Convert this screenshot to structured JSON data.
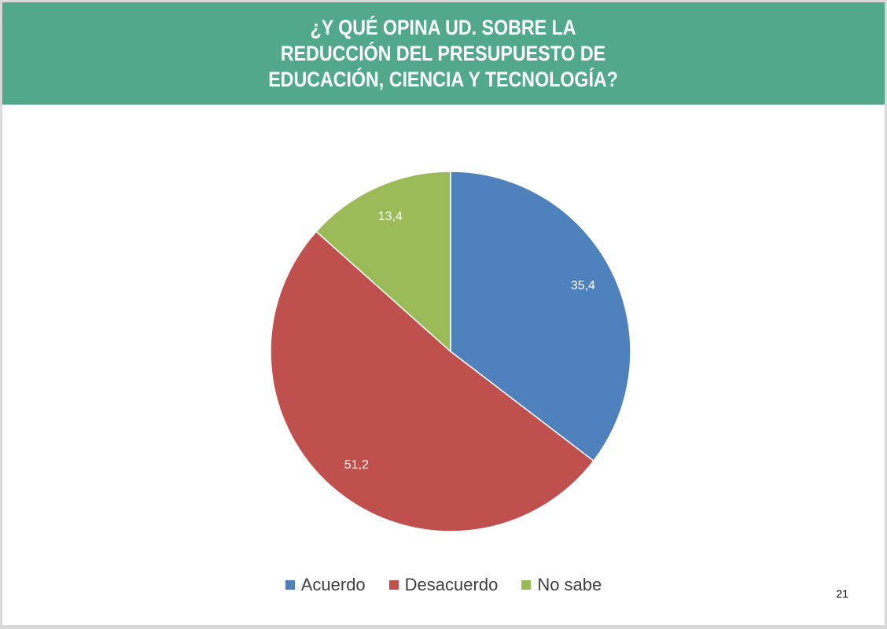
{
  "header": {
    "title_lines": [
      "¿Y QUÉ OPINA UD. SOBRE LA",
      "REDUCCIÓN DEL PRESUPUESTO DE",
      "EDUCACIÓN, CIENCIA Y TECNOLOGÍA?"
    ]
  },
  "colors": {
    "header_bg": "#52a88a",
    "acuerdo": "#4f81bd",
    "desacuerdo": "#c0504d",
    "no_sabe": "#9bbb59"
  },
  "chart_data": {
    "type": "pie",
    "slices": [
      {
        "label": "Acuerdo",
        "value": 35.4,
        "display": "35,4",
        "color": "#4f81bd"
      },
      {
        "label": "Desacuerdo",
        "value": 51.2,
        "display": "51,2",
        "color": "#c0504d"
      },
      {
        "label": "No sabe",
        "value": 13.4,
        "display": "13,4",
        "color": "#9bbb59"
      }
    ],
    "legend_position": "bottom"
  },
  "legend": {
    "items": [
      "Acuerdo",
      "Desacuerdo",
      "No sabe"
    ]
  },
  "footer": {
    "page_number": "21"
  }
}
